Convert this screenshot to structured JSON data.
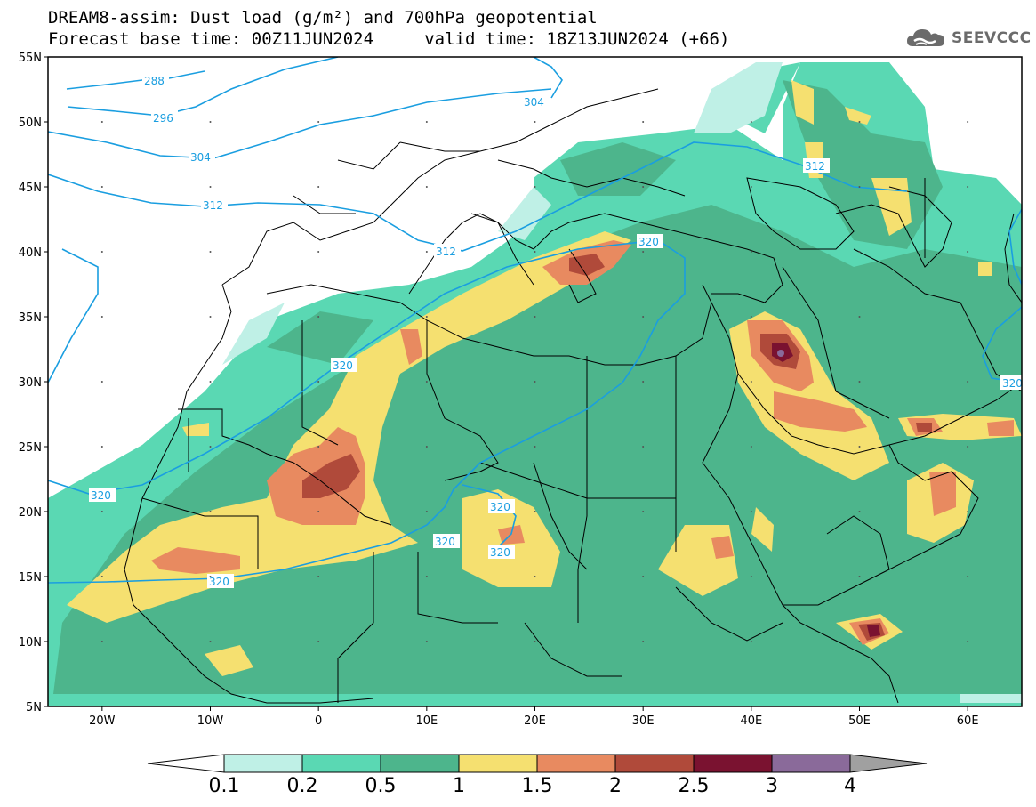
{
  "title": {
    "line1": "DREAM8-assim: Dust load (g/m²) and 700hPa geopotential",
    "line2": "Forecast base time: 00Z11JUN2024     valid time: 18Z13JUN2024 (+66)"
  },
  "logo": {
    "text": "SEEVCCC",
    "icon": "cloud-icon"
  },
  "axes": {
    "lat_ticks": [
      "55N",
      "50N",
      "45N",
      "40N",
      "35N",
      "30N",
      "25N",
      "20N",
      "15N",
      "10N",
      "5N"
    ],
    "lon_ticks": [
      "20W",
      "10W",
      "0",
      "10E",
      "20E",
      "30E",
      "40E",
      "50E",
      "60E"
    ],
    "lon_range": [
      -25,
      65
    ],
    "lat_range": [
      5,
      55
    ]
  },
  "contours": {
    "variable": "700hPa geopotential",
    "labels": [
      "288",
      "296",
      "304",
      "304",
      "312",
      "312",
      "312",
      "320",
      "320",
      "320",
      "320",
      "320",
      "320",
      "320",
      "320"
    ],
    "color": "#1a9ee0"
  },
  "colorbar": {
    "labels": [
      "0.1",
      "0.2",
      "0.5",
      "1",
      "1.5",
      "2",
      "2.5",
      "3",
      "4"
    ],
    "colors": [
      "#ffffff",
      "#bff0e6",
      "#5ad8b3",
      "#4db58c",
      "#f5e070",
      "#e88a60",
      "#b04a3a",
      "#7a1230",
      "#8a6a9a",
      "#a0a0a0"
    ]
  }
}
